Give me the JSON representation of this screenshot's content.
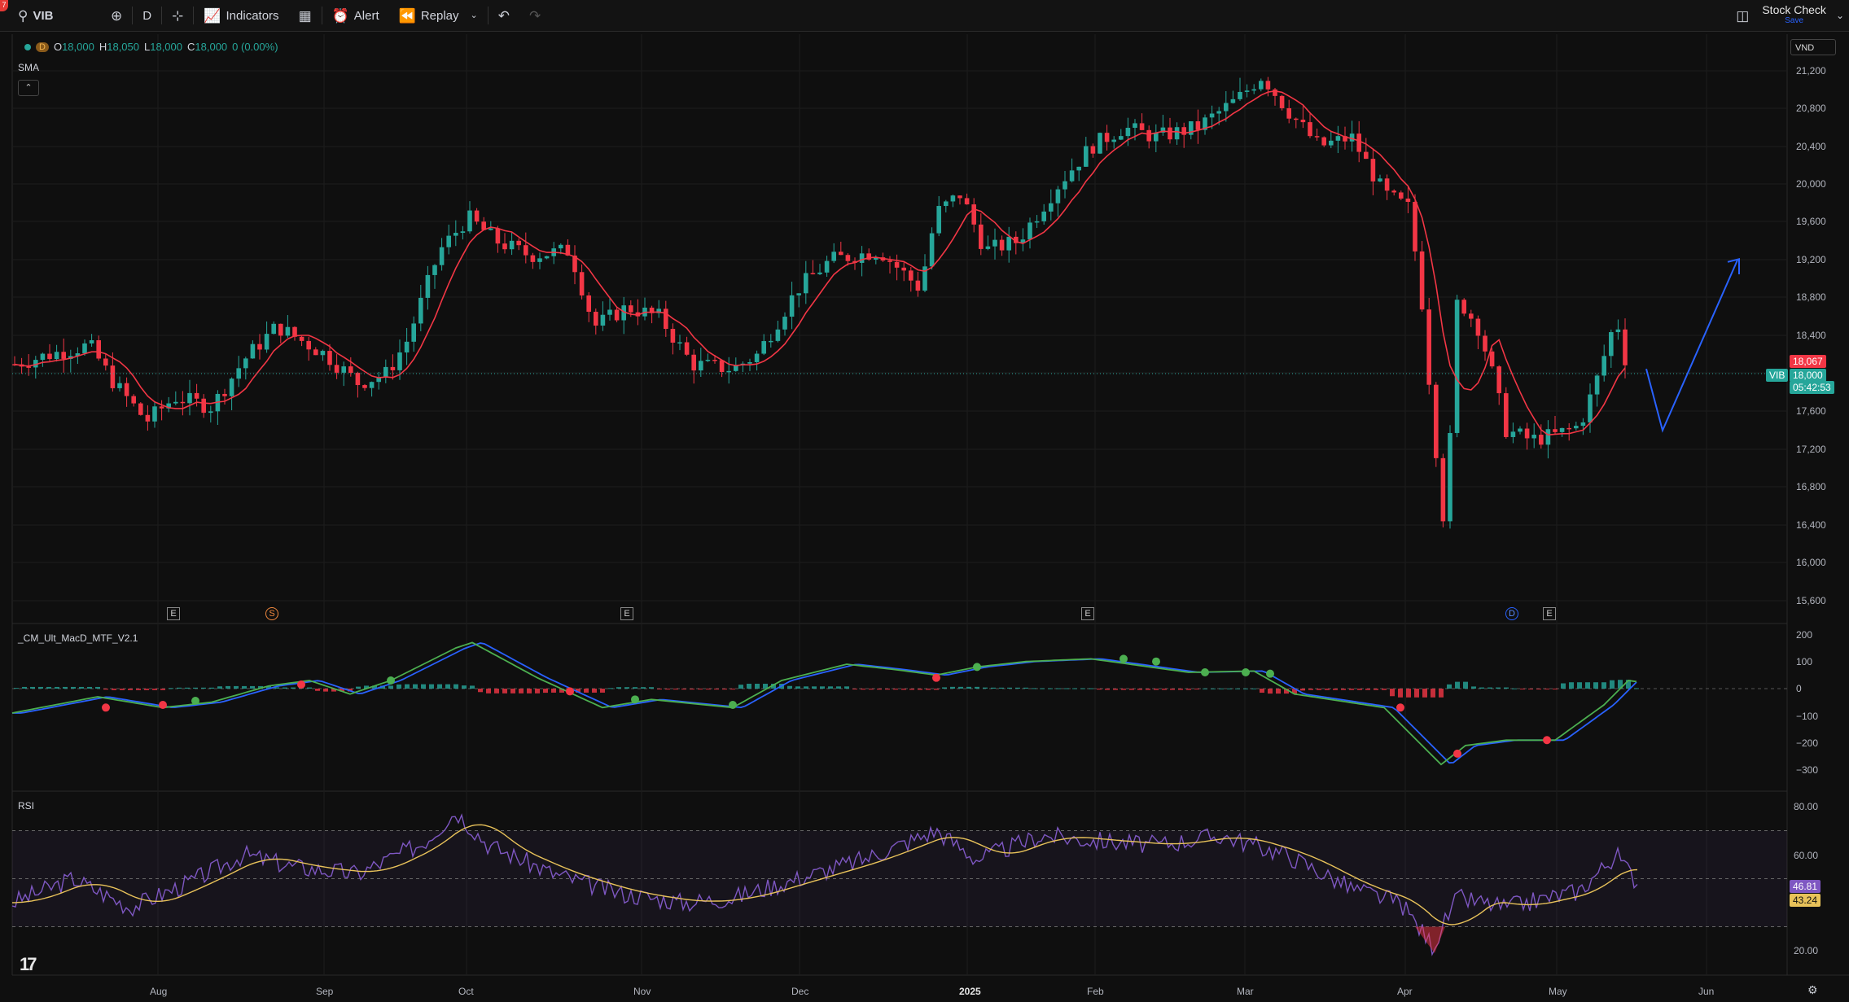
{
  "toolbar": {
    "symbol": "VIB",
    "interval": "D",
    "indicators_label": "Indicators",
    "alert_label": "Alert",
    "replay_label": "Replay",
    "layout_name": "Stock Check",
    "layout_save": "Save",
    "badge": "7"
  },
  "legend": {
    "interval_badge": "D",
    "o_label": "O",
    "o_value": "18,000",
    "h_label": "H",
    "h_value": "18,050",
    "l_label": "L",
    "l_value": "18,000",
    "c_label": "C",
    "c_value": "18,000",
    "change": "0 (0.00%)"
  },
  "indicators": {
    "sma_label": "SMA",
    "macd_label": "_CM_Ult_MacD_MTF_V2.1",
    "rsi_label": "RSI"
  },
  "currency": "VND",
  "price_axis": [
    "21,200",
    "20,800",
    "20,400",
    "20,000",
    "19,600",
    "19,200",
    "18,800",
    "18,400",
    "17,600",
    "17,200",
    "16,800",
    "16,400",
    "16,000",
    "15,600"
  ],
  "macd_axis": [
    "200",
    "100",
    "0",
    "−100",
    "−200",
    "−300"
  ],
  "rsi_axis": [
    "80.00",
    "60.00",
    "20.00"
  ],
  "price_tags": {
    "sma_value": "18,067",
    "symbol": "VIB",
    "last_price": "18,000",
    "countdown": "05:42:53",
    "rsi_value": "46.81",
    "rsi_ma_value": "43.24"
  },
  "event_markers": [
    {
      "label": "E",
      "type": "earnings"
    },
    {
      "label": "S",
      "type": "split"
    },
    {
      "label": "E",
      "type": "earnings"
    },
    {
      "label": "E",
      "type": "earnings"
    },
    {
      "label": "D",
      "type": "dividend"
    },
    {
      "label": "E",
      "type": "earnings"
    }
  ],
  "time_axis": [
    "Aug",
    "Sep",
    "Oct",
    "Nov",
    "Dec",
    "2025",
    "Feb",
    "Mar",
    "Apr",
    "May",
    "Jun"
  ],
  "colors": {
    "up": "#26a69a",
    "down": "#f23645",
    "sma": "#f23645",
    "drawing": "#2962ff",
    "rsi": "#7e57c2",
    "rsi_ma": "#e8c25a",
    "macd_fast_up": "#4caf50",
    "macd_slow": "#2962ff",
    "macd_down": "#f23645"
  },
  "chart_data": {
    "type": "candlestick",
    "period": "2024-07 to 2025-05",
    "price_range": [
      15400,
      21500
    ],
    "key_prices": {
      "high": 21300,
      "low_wick": 16300,
      "last": 18000,
      "sma": 18067
    },
    "drawing_projection": [
      {
        "label": "start",
        "price": 18050
      },
      {
        "label": "dip",
        "price": 17400
      },
      {
        "label": "target",
        "price": 19200
      }
    ],
    "rsi": {
      "value": 46.81,
      "ma": 43.24,
      "upper_band": 70,
      "lower_band": 30
    },
    "macd_range": [
      -320,
      180
    ]
  }
}
